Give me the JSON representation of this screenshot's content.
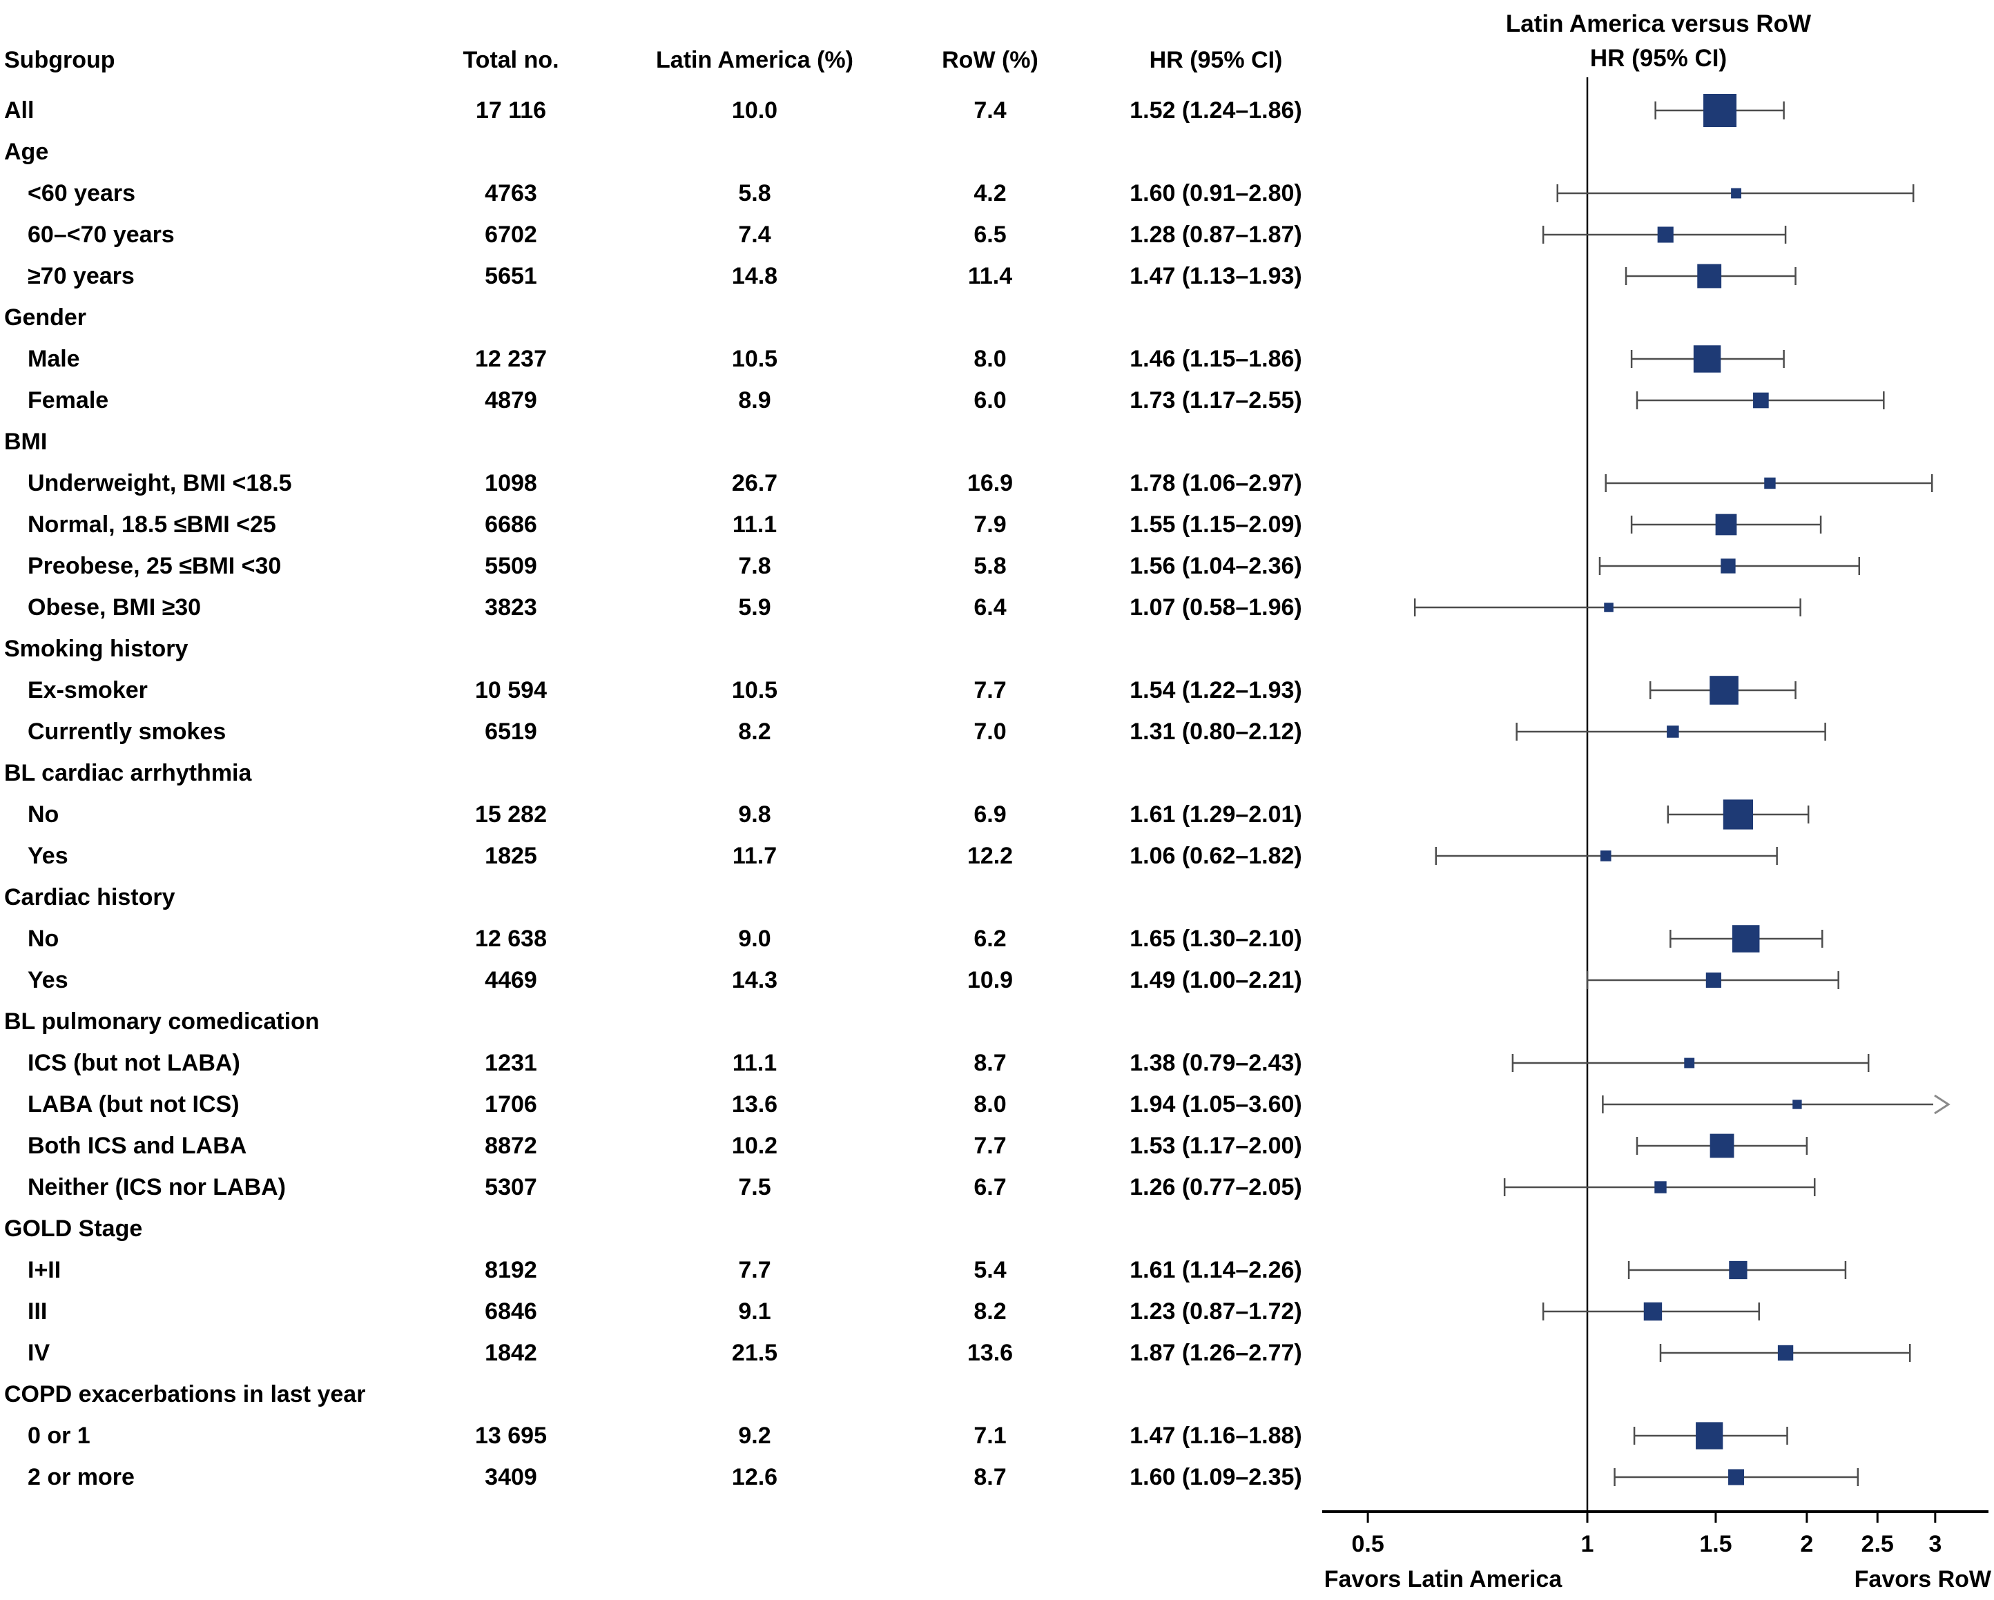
{
  "title": {
    "line1": "Latin America versus RoW",
    "line2": "HR (95% CI)"
  },
  "columns": {
    "subgroup": "Subgroup",
    "total": "Total no.",
    "latin_america": "Latin America (%)",
    "row_pct": "RoW (%)",
    "hr_ci": "HR (95% CI)"
  },
  "axis": {
    "scale": "log",
    "ticks": [
      0.5,
      1,
      1.5,
      2,
      2.5,
      3
    ],
    "tick_labels": [
      "0.5",
      "1",
      "1.5",
      "2",
      "2.5",
      "3"
    ],
    "reference": 1,
    "favors_left": "Favors Latin America",
    "favors_right": "Favors RoW"
  },
  "colors": {
    "marker": "#1e3a75",
    "ci_line": "#4d4d4d",
    "axis": "#000000",
    "arrow": "#8a8a8a",
    "text": "#000000"
  },
  "chart_data": {
    "type": "forest",
    "title": "Latin America versus RoW HR (95% CI)",
    "x_scale": "log",
    "x_ticks": [
      0.5,
      1,
      1.5,
      2,
      2.5,
      3
    ],
    "reference_line": 1,
    "rows": [
      {
        "kind": "data",
        "label": "All",
        "indent": false,
        "total": "17 116",
        "la": "10.0",
        "row": "7.4",
        "hr_text": "1.52 (1.24–1.86)",
        "hr": 1.52,
        "lo": 1.24,
        "hi": 1.86
      },
      {
        "kind": "group",
        "label": "Age"
      },
      {
        "kind": "data",
        "label": "<60 years",
        "indent": true,
        "total": "4763",
        "la": "5.8",
        "row": "4.2",
        "hr_text": "1.60 (0.91–2.80)",
        "hr": 1.6,
        "lo": 0.91,
        "hi": 2.8
      },
      {
        "kind": "data",
        "label": "60–<70 years",
        "indent": true,
        "total": "6702",
        "la": "7.4",
        "row": "6.5",
        "hr_text": "1.28 (0.87–1.87)",
        "hr": 1.28,
        "lo": 0.87,
        "hi": 1.87
      },
      {
        "kind": "data",
        "label": "≥70 years",
        "indent": true,
        "total": "5651",
        "la": "14.8",
        "row": "11.4",
        "hr_text": "1.47 (1.13–1.93)",
        "hr": 1.47,
        "lo": 1.13,
        "hi": 1.93
      },
      {
        "kind": "group",
        "label": "Gender"
      },
      {
        "kind": "data",
        "label": "Male",
        "indent": true,
        "total": "12 237",
        "la": "10.5",
        "row": "8.0",
        "hr_text": "1.46 (1.15–1.86)",
        "hr": 1.46,
        "lo": 1.15,
        "hi": 1.86
      },
      {
        "kind": "data",
        "label": "Female",
        "indent": true,
        "total": "4879",
        "la": "8.9",
        "row": "6.0",
        "hr_text": "1.73 (1.17–2.55)",
        "hr": 1.73,
        "lo": 1.17,
        "hi": 2.55
      },
      {
        "kind": "group",
        "label": "BMI"
      },
      {
        "kind": "data",
        "label": "Underweight, BMI <18.5",
        "indent": true,
        "total": "1098",
        "la": "26.7",
        "row": "16.9",
        "hr_text": "1.78 (1.06–2.97)",
        "hr": 1.78,
        "lo": 1.06,
        "hi": 2.97
      },
      {
        "kind": "data",
        "label": "Normal, 18.5 ≤BMI <25",
        "indent": true,
        "total": "6686",
        "la": "11.1",
        "row": "7.9",
        "hr_text": "1.55 (1.15–2.09)",
        "hr": 1.55,
        "lo": 1.15,
        "hi": 2.09
      },
      {
        "kind": "data",
        "label": "Preobese, 25 ≤BMI <30",
        "indent": true,
        "total": "5509",
        "la": "7.8",
        "row": "5.8",
        "hr_text": "1.56 (1.04–2.36)",
        "hr": 1.56,
        "lo": 1.04,
        "hi": 2.36
      },
      {
        "kind": "data",
        "label": "Obese, BMI ≥30",
        "indent": true,
        "total": "3823",
        "la": "5.9",
        "row": "6.4",
        "hr_text": "1.07 (0.58–1.96)",
        "hr": 1.07,
        "lo": 0.58,
        "hi": 1.96
      },
      {
        "kind": "group",
        "label": "Smoking history"
      },
      {
        "kind": "data",
        "label": "Ex-smoker",
        "indent": true,
        "total": "10 594",
        "la": "10.5",
        "row": "7.7",
        "hr_text": "1.54 (1.22–1.93)",
        "hr": 1.54,
        "lo": 1.22,
        "hi": 1.93
      },
      {
        "kind": "data",
        "label": "Currently smokes",
        "indent": true,
        "total": "6519",
        "la": "8.2",
        "row": "7.0",
        "hr_text": "1.31 (0.80–2.12)",
        "hr": 1.31,
        "lo": 0.8,
        "hi": 2.12
      },
      {
        "kind": "group",
        "label": "BL cardiac arrhythmia"
      },
      {
        "kind": "data",
        "label": "No",
        "indent": true,
        "total": "15 282",
        "la": "9.8",
        "row": "6.9",
        "hr_text": "1.61 (1.29–2.01)",
        "hr": 1.61,
        "lo": 1.29,
        "hi": 2.01
      },
      {
        "kind": "data",
        "label": "Yes",
        "indent": true,
        "total": "1825",
        "la": "11.7",
        "row": "12.2",
        "hr_text": "1.06 (0.62–1.82)",
        "hr": 1.06,
        "lo": 0.62,
        "hi": 1.82
      },
      {
        "kind": "group",
        "label": "Cardiac history"
      },
      {
        "kind": "data",
        "label": "No",
        "indent": true,
        "total": "12 638",
        "la": "9.0",
        "row": "6.2",
        "hr_text": "1.65 (1.30–2.10)",
        "hr": 1.65,
        "lo": 1.3,
        "hi": 2.1
      },
      {
        "kind": "data",
        "label": "Yes",
        "indent": true,
        "total": "4469",
        "la": "14.3",
        "row": "10.9",
        "hr_text": "1.49 (1.00–2.21)",
        "hr": 1.49,
        "lo": 1.0,
        "hi": 2.21
      },
      {
        "kind": "group",
        "label": "BL pulmonary comedication"
      },
      {
        "kind": "data",
        "label": "ICS (but not LABA)",
        "indent": true,
        "total": "1231",
        "la": "11.1",
        "row": "8.7",
        "hr_text": "1.38 (0.79–2.43)",
        "hr": 1.38,
        "lo": 0.79,
        "hi": 2.43
      },
      {
        "kind": "data",
        "label": "LABA (but not ICS)",
        "indent": true,
        "total": "1706",
        "la": "13.6",
        "row": "8.0",
        "hr_text": "1.94 (1.05–3.60)",
        "hr": 1.94,
        "lo": 1.05,
        "hi": 3.6
      },
      {
        "kind": "data",
        "label": "Both ICS and LABA",
        "indent": true,
        "total": "8872",
        "la": "10.2",
        "row": "7.7",
        "hr_text": "1.53 (1.17–2.00)",
        "hr": 1.53,
        "lo": 1.17,
        "hi": 2.0
      },
      {
        "kind": "data",
        "label": "Neither (ICS nor LABA)",
        "indent": true,
        "total": "5307",
        "la": "7.5",
        "row": "6.7",
        "hr_text": "1.26 (0.77–2.05)",
        "hr": 1.26,
        "lo": 0.77,
        "hi": 2.05
      },
      {
        "kind": "group",
        "label": "GOLD Stage"
      },
      {
        "kind": "data",
        "label": "I+II",
        "indent": true,
        "total": "8192",
        "la": "7.7",
        "row": "5.4",
        "hr_text": "1.61 (1.14–2.26)",
        "hr": 1.61,
        "lo": 1.14,
        "hi": 2.26
      },
      {
        "kind": "data",
        "label": "III",
        "indent": true,
        "total": "6846",
        "la": "9.1",
        "row": "8.2",
        "hr_text": "1.23 (0.87–1.72)",
        "hr": 1.23,
        "lo": 0.87,
        "hi": 1.72
      },
      {
        "kind": "data",
        "label": "IV",
        "indent": true,
        "total": "1842",
        "la": "21.5",
        "row": "13.6",
        "hr_text": "1.87 (1.26–2.77)",
        "hr": 1.87,
        "lo": 1.26,
        "hi": 2.77
      },
      {
        "kind": "group",
        "label": "COPD exacerbations in last year"
      },
      {
        "kind": "data",
        "label": "0 or 1",
        "indent": true,
        "total": "13 695",
        "la": "9.2",
        "row": "7.1",
        "hr_text": "1.47 (1.16–1.88)",
        "hr": 1.47,
        "lo": 1.16,
        "hi": 1.88
      },
      {
        "kind": "data",
        "label": "2 or more",
        "indent": true,
        "total": "3409",
        "la": "12.6",
        "row": "8.7",
        "hr_text": "1.60 (1.09–2.35)",
        "hr": 1.6,
        "lo": 1.09,
        "hi": 2.35
      }
    ]
  }
}
